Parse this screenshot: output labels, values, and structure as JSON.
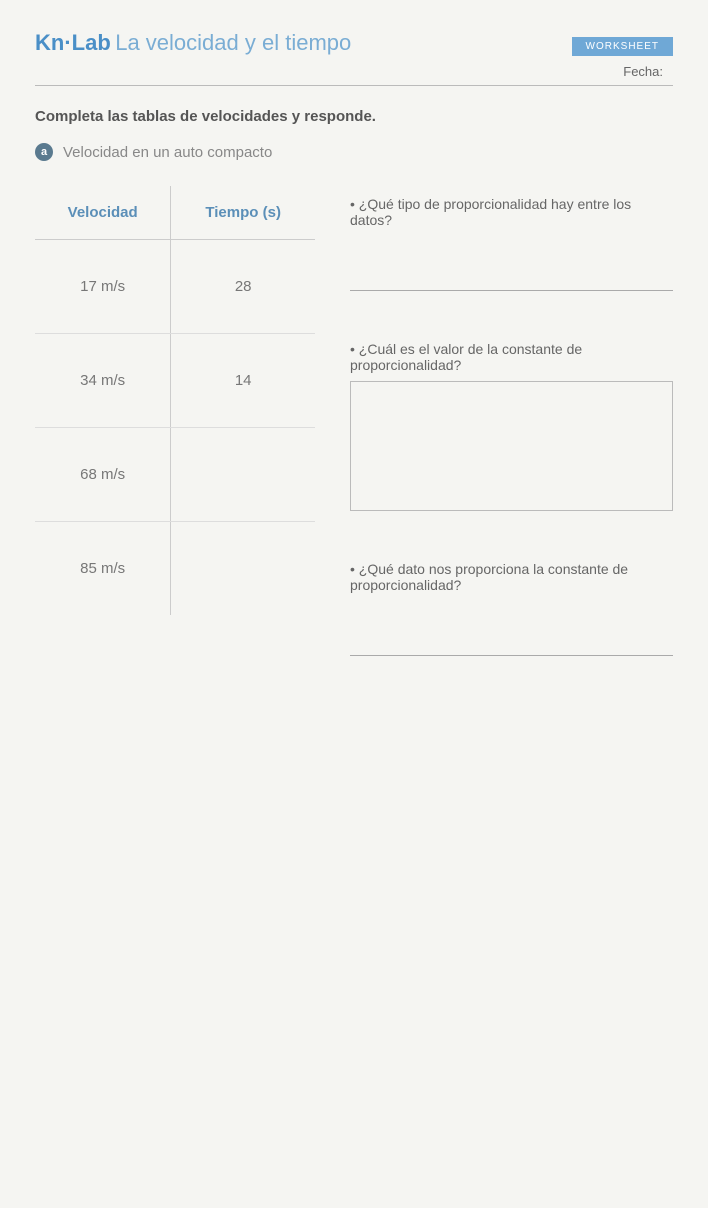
{
  "header": {
    "prefix": "Kn·Lab",
    "title": "La velocidad y el tiempo",
    "tag": "WORKSHEET",
    "fecha_label": "Fecha:"
  },
  "instruction": "Completa las tablas de velocidades y responde.",
  "section": {
    "bullet": "a",
    "subtitle": "Velocidad en un auto compacto"
  },
  "table": {
    "headers": {
      "col1": "Velocidad",
      "col2": "Tiempo (s)"
    },
    "rows": [
      {
        "velocidad": "17 m/s",
        "tiempo": "28"
      },
      {
        "velocidad": "34 m/s",
        "tiempo": "14"
      },
      {
        "velocidad": "68 m/s",
        "tiempo": ""
      },
      {
        "velocidad": "85 m/s",
        "tiempo": ""
      }
    ]
  },
  "questions": {
    "q1": "• ¿Qué tipo de proporcionalidad hay entre los datos?",
    "q2": "• ¿Cuál es el valor de la constante de proporcionalidad?",
    "q3": "• ¿Qué dato nos proporciona la constante de proporcionalidad?"
  },
  "colors": {
    "accent": "#5b8fb8",
    "text": "#555",
    "muted": "#888"
  }
}
